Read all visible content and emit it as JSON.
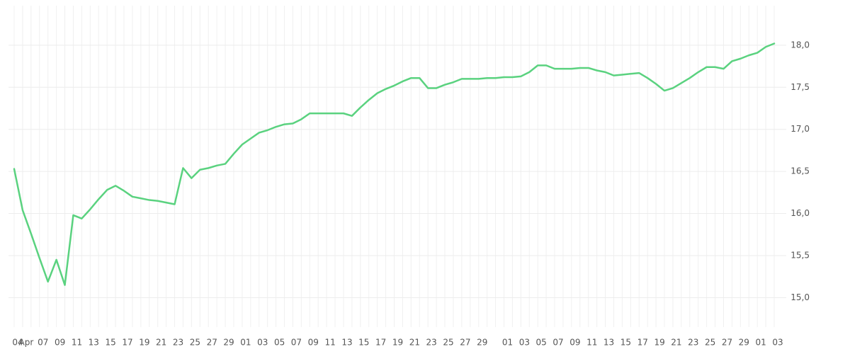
{
  "chart_data": {
    "type": "line",
    "categories": [
      "04",
      "Apr",
      null,
      "07",
      null,
      "09",
      null,
      "11",
      null,
      "13",
      null,
      "15",
      null,
      "17",
      null,
      "19",
      null,
      "21",
      null,
      "23",
      null,
      "25",
      null,
      "27",
      null,
      "29",
      null,
      "01",
      null,
      "03",
      null,
      "05",
      null,
      "07",
      null,
      "09",
      null,
      "11",
      null,
      "13",
      null,
      "15",
      null,
      "17",
      null,
      "19",
      null,
      "21",
      null,
      "23",
      null,
      "25",
      null,
      "27",
      null,
      "29",
      null,
      null,
      "01",
      null,
      "03",
      null,
      "05",
      null,
      "07",
      null,
      "09",
      null,
      "11",
      null,
      "13",
      null,
      "15",
      null,
      "17",
      null,
      "19",
      null,
      "21",
      null,
      "23",
      null,
      "25",
      null,
      "27",
      null,
      "29",
      null,
      "01",
      null,
      "03"
    ],
    "values": [
      16.53,
      16.04,
      15.76,
      15.47,
      15.19,
      15.45,
      15.15,
      15.98,
      15.94,
      16.05,
      16.17,
      16.28,
      16.33,
      16.27,
      16.2,
      16.18,
      16.16,
      16.15,
      16.13,
      16.11,
      16.54,
      16.42,
      16.52,
      16.54,
      16.57,
      16.59,
      16.71,
      16.82,
      16.89,
      16.96,
      16.99,
      17.03,
      17.06,
      17.07,
      17.12,
      17.19,
      17.19,
      17.19,
      17.19,
      17.19,
      17.16,
      17.26,
      17.35,
      17.43,
      17.48,
      17.52,
      17.57,
      17.61,
      17.61,
      17.49,
      17.49,
      17.53,
      17.56,
      17.6,
      17.6,
      17.6,
      17.61,
      17.61,
      17.62,
      17.62,
      17.63,
      17.68,
      17.76,
      17.76,
      17.72,
      17.72,
      17.72,
      17.73,
      17.73,
      17.7,
      17.68,
      17.64,
      17.65,
      17.66,
      17.67,
      17.61,
      17.54,
      17.46,
      17.49,
      17.55,
      17.61,
      17.68,
      17.74,
      17.74,
      17.72,
      17.81,
      17.84,
      17.88,
      17.91,
      17.98,
      18.02
    ],
    "color": "#5ad27f",
    "ylim": [
      14.65,
      18.47
    ],
    "yticks": [
      {
        "value": 15,
        "label": "15,0"
      },
      {
        "value": 15.5,
        "label": "15,5"
      },
      {
        "value": 16,
        "label": "16,0"
      },
      {
        "value": 16.5,
        "label": "16,5"
      },
      {
        "value": 17,
        "label": "17,0"
      },
      {
        "value": 17.5,
        "label": "17,5"
      },
      {
        "value": 18,
        "label": "18,0"
      }
    ],
    "grid": true
  }
}
